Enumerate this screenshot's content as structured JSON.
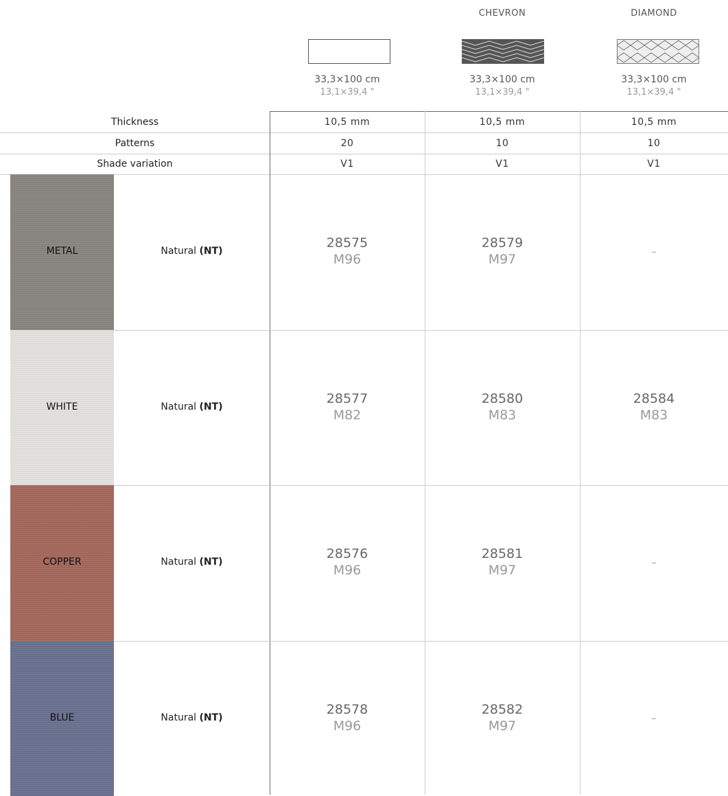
{
  "columns": [
    {
      "size": "33,3×100 cm",
      "size_in": "13,1×39,4 \""
    },
    {
      "name": "CHEVRON",
      "size": "33,3×100 cm",
      "size_in": "13,1×39,4 \""
    },
    {
      "name": "DIAMOND",
      "size": "33,3×100 cm",
      "size_in": "13,1×39,4 \""
    }
  ],
  "specs": [
    {
      "label": "Thickness",
      "values": [
        "10,5 mm",
        "10,5 mm",
        "10,5 mm"
      ]
    },
    {
      "label": "Patterns",
      "values": [
        "20",
        "10",
        "10"
      ]
    },
    {
      "label": "Shade variation",
      "values": [
        "V1",
        "V1",
        "V1"
      ]
    }
  ],
  "rows": [
    {
      "color": "METAL",
      "swatch": "#8a8782",
      "finish": "Natural",
      "finish_code": "(NT)",
      "cells": [
        {
          "code": "28575",
          "ref": "M96"
        },
        {
          "code": "28579",
          "ref": "M97"
        },
        {
          "empty": "–"
        }
      ]
    },
    {
      "color": "WHITE",
      "swatch": "#e5e4e0",
      "finish": "Natural",
      "finish_code": "(NT)",
      "cells": [
        {
          "code": "28577",
          "ref": "M82"
        },
        {
          "code": "28580",
          "ref": "M83"
        },
        {
          "code": "28584",
          "ref": "M83"
        }
      ]
    },
    {
      "color": "COPPER",
      "swatch": "#a5695d",
      "finish": "Natural",
      "finish_code": "(NT)",
      "cells": [
        {
          "code": "28576",
          "ref": "M96"
        },
        {
          "code": "28581",
          "ref": "M97"
        },
        {
          "empty": "–"
        }
      ]
    },
    {
      "color": "BLUE",
      "swatch": "#6b7391",
      "finish": "Natural",
      "finish_code": "(NT)",
      "cells": [
        {
          "code": "28578",
          "ref": "M96"
        },
        {
          "code": "28582",
          "ref": "M97"
        },
        {
          "empty": "–"
        }
      ]
    }
  ]
}
